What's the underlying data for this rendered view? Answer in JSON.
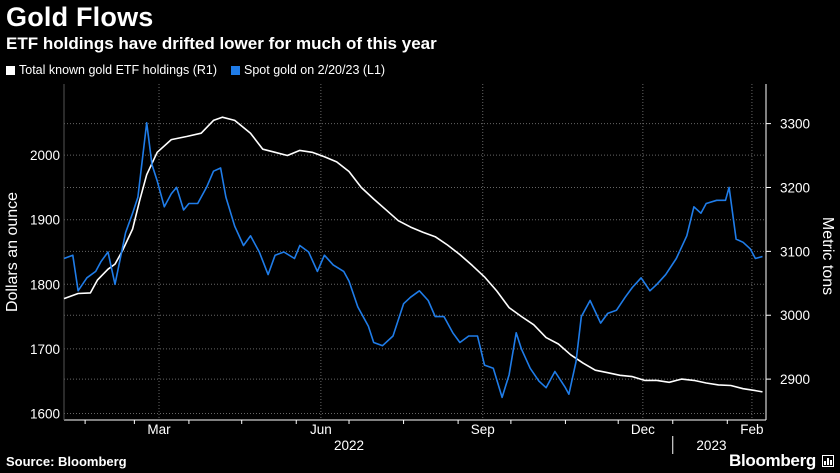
{
  "header": {
    "title": "Gold Flows",
    "subtitle": "ETF holdings have drifted lower for much of this year"
  },
  "legend": [
    {
      "label": "Total known gold ETF holdings (R1)",
      "color": "#ffffff"
    },
    {
      "label": "Spot gold on 2/20/23 (L1)",
      "color": "#1f7ce8"
    }
  ],
  "footer": {
    "source": "Source: Bloomberg",
    "brand": "Bloomberg"
  },
  "chart_data": {
    "type": "line",
    "title": "Gold Flows",
    "subtitle": "ETF holdings have drifted lower for much of this year",
    "x_range": [
      "2022-01-20",
      "2023-02-23"
    ],
    "x_ticks": [
      {
        "label": "Mar",
        "date": "2022-03-15"
      },
      {
        "label": "Jun",
        "date": "2022-06-15"
      },
      {
        "label": "Sep",
        "date": "2022-09-15"
      },
      {
        "label": "Dec",
        "date": "2022-12-15"
      },
      {
        "label": "Feb",
        "date": "2023-02-15"
      }
    ],
    "x_year_labels": [
      {
        "label": "2022",
        "date": "2022-07-01"
      },
      {
        "label": "2023",
        "date": "2023-01-23"
      }
    ],
    "y_left": {
      "label": "Dollars an ounce",
      "range": [
        1590,
        2110
      ],
      "ticks": [
        1600,
        1700,
        1800,
        1900,
        2000
      ]
    },
    "y_right": {
      "label": "Metric tons",
      "range": [
        2836,
        3362
      ],
      "ticks": [
        2900,
        3000,
        3100,
        3200,
        3300
      ]
    },
    "grid": true,
    "legend_position": "top-left",
    "series": [
      {
        "name": "Total known gold ETF holdings (R1)",
        "axis": "right",
        "color": "#ffffff",
        "points": [
          [
            "2022-01-20",
            3026
          ],
          [
            "2022-01-28",
            3034
          ],
          [
            "2022-02-04",
            3035
          ],
          [
            "2022-02-08",
            3055
          ],
          [
            "2022-02-14",
            3072
          ],
          [
            "2022-02-18",
            3080
          ],
          [
            "2022-02-22",
            3100
          ],
          [
            "2022-02-28",
            3135
          ],
          [
            "2022-03-04",
            3180
          ],
          [
            "2022-03-08",
            3220
          ],
          [
            "2022-03-14",
            3255
          ],
          [
            "2022-03-22",
            3275
          ],
          [
            "2022-03-31",
            3280
          ],
          [
            "2022-04-08",
            3285
          ],
          [
            "2022-04-15",
            3305
          ],
          [
            "2022-04-20",
            3310
          ],
          [
            "2022-04-27",
            3305
          ],
          [
            "2022-05-06",
            3285
          ],
          [
            "2022-05-13",
            3260
          ],
          [
            "2022-05-20",
            3255
          ],
          [
            "2022-05-27",
            3250
          ],
          [
            "2022-06-03",
            3258
          ],
          [
            "2022-06-10",
            3255
          ],
          [
            "2022-06-17",
            3248
          ],
          [
            "2022-06-24",
            3240
          ],
          [
            "2022-07-01",
            3225
          ],
          [
            "2022-07-08",
            3200
          ],
          [
            "2022-07-15",
            3182
          ],
          [
            "2022-07-22",
            3165
          ],
          [
            "2022-07-29",
            3148
          ],
          [
            "2022-08-05",
            3138
          ],
          [
            "2022-08-12",
            3130
          ],
          [
            "2022-08-19",
            3123
          ],
          [
            "2022-08-26",
            3110
          ],
          [
            "2022-09-02",
            3095
          ],
          [
            "2022-09-09",
            3078
          ],
          [
            "2022-09-16",
            3060
          ],
          [
            "2022-09-23",
            3038
          ],
          [
            "2022-09-30",
            3012
          ],
          [
            "2022-10-07",
            2998
          ],
          [
            "2022-10-14",
            2985
          ],
          [
            "2022-10-21",
            2965
          ],
          [
            "2022-10-28",
            2955
          ],
          [
            "2022-11-04",
            2938
          ],
          [
            "2022-11-11",
            2925
          ],
          [
            "2022-11-18",
            2914
          ],
          [
            "2022-11-25",
            2910
          ],
          [
            "2022-12-02",
            2906
          ],
          [
            "2022-12-09",
            2904
          ],
          [
            "2022-12-16",
            2898
          ],
          [
            "2022-12-23",
            2898
          ],
          [
            "2022-12-30",
            2895
          ],
          [
            "2023-01-06",
            2900
          ],
          [
            "2023-01-13",
            2898
          ],
          [
            "2023-01-20",
            2894
          ],
          [
            "2023-01-27",
            2891
          ],
          [
            "2023-02-03",
            2890
          ],
          [
            "2023-02-10",
            2885
          ],
          [
            "2023-02-17",
            2882
          ],
          [
            "2023-02-21",
            2880
          ]
        ]
      },
      {
        "name": "Spot gold on 2/20/23 (L1)",
        "axis": "left",
        "color": "#1f7ce8",
        "points": [
          [
            "2022-01-20",
            1840
          ],
          [
            "2022-01-25",
            1845
          ],
          [
            "2022-01-28",
            1790
          ],
          [
            "2022-02-02",
            1810
          ],
          [
            "2022-02-07",
            1820
          ],
          [
            "2022-02-10",
            1835
          ],
          [
            "2022-02-14",
            1850
          ],
          [
            "2022-02-18",
            1800
          ],
          [
            "2022-02-21",
            1840
          ],
          [
            "2022-02-24",
            1880
          ],
          [
            "2022-02-28",
            1910
          ],
          [
            "2022-03-03",
            1935
          ],
          [
            "2022-03-08",
            2050
          ],
          [
            "2022-03-11",
            1985
          ],
          [
            "2022-03-14",
            1960
          ],
          [
            "2022-03-18",
            1920
          ],
          [
            "2022-03-22",
            1940
          ],
          [
            "2022-03-25",
            1950
          ],
          [
            "2022-03-29",
            1915
          ],
          [
            "2022-04-01",
            1925
          ],
          [
            "2022-04-06",
            1925
          ],
          [
            "2022-04-11",
            1950
          ],
          [
            "2022-04-15",
            1975
          ],
          [
            "2022-04-19",
            1980
          ],
          [
            "2022-04-22",
            1935
          ],
          [
            "2022-04-27",
            1890
          ],
          [
            "2022-05-02",
            1860
          ],
          [
            "2022-05-06",
            1875
          ],
          [
            "2022-05-11",
            1850
          ],
          [
            "2022-05-16",
            1815
          ],
          [
            "2022-05-20",
            1845
          ],
          [
            "2022-05-25",
            1850
          ],
          [
            "2022-05-31",
            1840
          ],
          [
            "2022-06-03",
            1860
          ],
          [
            "2022-06-08",
            1850
          ],
          [
            "2022-06-13",
            1820
          ],
          [
            "2022-06-17",
            1845
          ],
          [
            "2022-06-22",
            1830
          ],
          [
            "2022-06-28",
            1820
          ],
          [
            "2022-07-01",
            1805
          ],
          [
            "2022-07-06",
            1765
          ],
          [
            "2022-07-12",
            1735
          ],
          [
            "2022-07-15",
            1710
          ],
          [
            "2022-07-20",
            1705
          ],
          [
            "2022-07-26",
            1720
          ],
          [
            "2022-08-01",
            1770
          ],
          [
            "2022-08-05",
            1780
          ],
          [
            "2022-08-10",
            1790
          ],
          [
            "2022-08-15",
            1775
          ],
          [
            "2022-08-19",
            1750
          ],
          [
            "2022-08-24",
            1750
          ],
          [
            "2022-08-29",
            1725
          ],
          [
            "2022-09-02",
            1710
          ],
          [
            "2022-09-07",
            1720
          ],
          [
            "2022-09-12",
            1720
          ],
          [
            "2022-09-16",
            1675
          ],
          [
            "2022-09-21",
            1670
          ],
          [
            "2022-09-26",
            1625
          ],
          [
            "2022-09-30",
            1660
          ],
          [
            "2022-10-04",
            1725
          ],
          [
            "2022-10-07",
            1700
          ],
          [
            "2022-10-12",
            1670
          ],
          [
            "2022-10-17",
            1650
          ],
          [
            "2022-10-21",
            1640
          ],
          [
            "2022-10-26",
            1665
          ],
          [
            "2022-11-01",
            1640
          ],
          [
            "2022-11-03",
            1630
          ],
          [
            "2022-11-07",
            1680
          ],
          [
            "2022-11-10",
            1750
          ],
          [
            "2022-11-15",
            1775
          ],
          [
            "2022-11-21",
            1740
          ],
          [
            "2022-11-25",
            1755
          ],
          [
            "2022-11-30",
            1760
          ],
          [
            "2022-12-05",
            1780
          ],
          [
            "2022-12-09",
            1795
          ],
          [
            "2022-12-14",
            1810
          ],
          [
            "2022-12-19",
            1790
          ],
          [
            "2022-12-23",
            1800
          ],
          [
            "2022-12-28",
            1815
          ],
          [
            "2023-01-03",
            1840
          ],
          [
            "2023-01-09",
            1875
          ],
          [
            "2023-01-13",
            1920
          ],
          [
            "2023-01-17",
            1910
          ],
          [
            "2023-01-20",
            1925
          ],
          [
            "2023-01-26",
            1930
          ],
          [
            "2023-01-31",
            1930
          ],
          [
            "2023-02-02",
            1950
          ],
          [
            "2023-02-06",
            1870
          ],
          [
            "2023-02-10",
            1865
          ],
          [
            "2023-02-14",
            1855
          ],
          [
            "2023-02-17",
            1840
          ],
          [
            "2023-02-21",
            1843
          ]
        ]
      }
    ]
  }
}
